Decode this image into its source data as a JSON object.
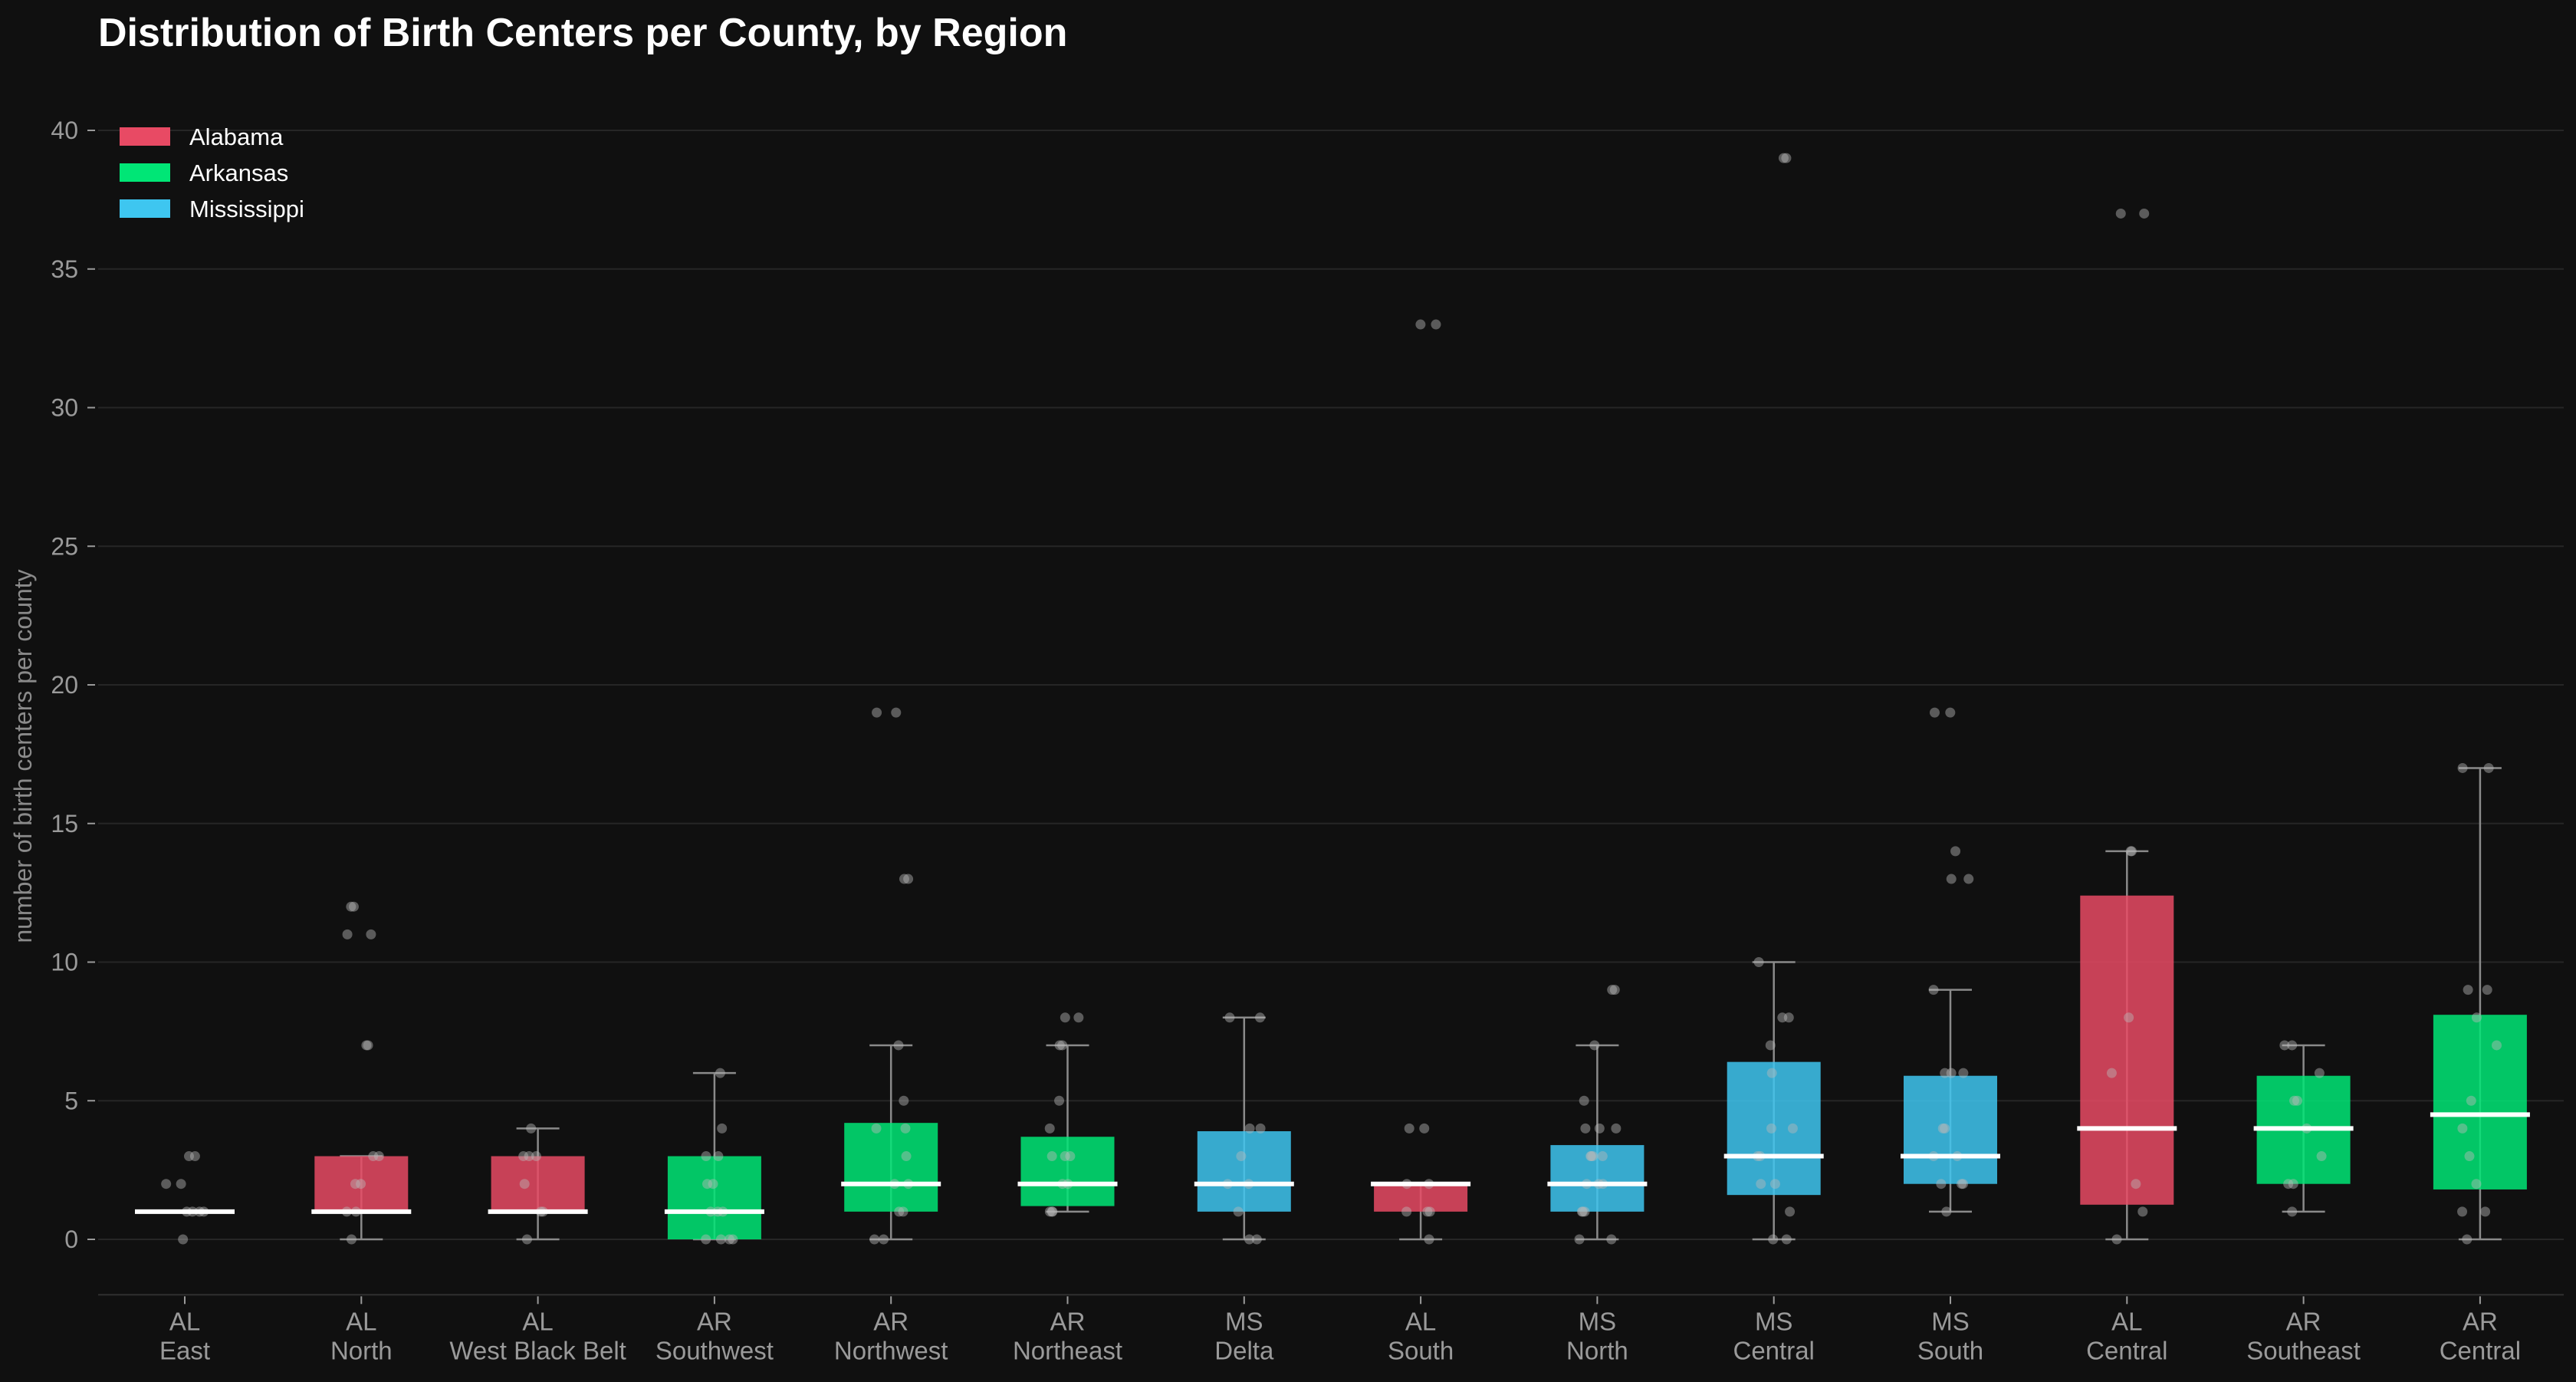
{
  "chart_data": {
    "type": "box",
    "title": "Distribution of Birth Centers per County, by Region",
    "ylabel": "number of birth centers per county",
    "xlabel": "",
    "ylim": [
      -2,
      42
    ],
    "yticks": [
      0,
      5,
      10,
      15,
      20,
      25,
      30,
      35,
      40
    ],
    "grid": "horizontal",
    "legend_position": "top-left",
    "legend": [
      {
        "name": "Alabama",
        "state": "AL",
        "color": "#e84a64"
      },
      {
        "name": "Arkansas",
        "state": "AR",
        "color": "#00e676"
      },
      {
        "name": "Mississippi",
        "state": "MS",
        "color": "#3ec6f0"
      }
    ],
    "colors": {
      "AL": "#e84a64",
      "AR": "#00e676",
      "MS": "#3ec6f0",
      "background": "#101010",
      "grid": "#262626",
      "median": "#ffffff"
    },
    "categories": [
      {
        "state": "AL",
        "region": "East",
        "whisker_low": 1,
        "q1": 1,
        "median": 1,
        "q3": 1,
        "whisker_high": 1,
        "points": [
          1,
          1,
          1,
          1,
          3,
          3,
          2,
          2,
          0
        ]
      },
      {
        "state": "AL",
        "region": "North",
        "whisker_low": 0,
        "q1": 1,
        "median": 1,
        "q3": 3,
        "whisker_high": 3,
        "points": [
          12,
          12,
          11,
          11,
          7,
          7,
          3,
          3,
          2,
          2,
          1,
          1,
          0
        ]
      },
      {
        "state": "AL",
        "region": "West Black Belt",
        "whisker_low": 0,
        "q1": 1,
        "median": 1,
        "q3": 3,
        "whisker_high": 4,
        "points": [
          4,
          3,
          3,
          3,
          2,
          1,
          1,
          0
        ]
      },
      {
        "state": "AR",
        "region": "Southwest",
        "whisker_low": 0,
        "q1": 0,
        "median": 1,
        "q3": 3,
        "whisker_high": 6,
        "points": [
          6,
          4,
          3,
          3,
          2,
          2,
          1,
          1,
          1,
          0,
          0,
          0,
          0
        ]
      },
      {
        "state": "AR",
        "region": "Northwest",
        "whisker_low": 0,
        "q1": 1,
        "median": 2,
        "q3": 4.2,
        "whisker_high": 7,
        "points": [
          19,
          19,
          13,
          13,
          7,
          5,
          4,
          4,
          3,
          2,
          2,
          1,
          1,
          0,
          0
        ]
      },
      {
        "state": "AR",
        "region": "Northeast",
        "whisker_low": 1,
        "q1": 1.2,
        "median": 2,
        "q3": 3.7,
        "whisker_high": 7,
        "points": [
          8,
          8,
          7,
          7,
          5,
          4,
          3,
          3,
          3,
          2,
          2,
          1,
          1,
          1
        ]
      },
      {
        "state": "MS",
        "region": "Delta",
        "whisker_low": 0,
        "q1": 1,
        "median": 2,
        "q3": 3.9,
        "whisker_high": 8,
        "points": [
          8,
          8,
          4,
          4,
          3,
          2,
          2,
          1,
          0,
          0
        ]
      },
      {
        "state": "AL",
        "region": "South",
        "whisker_low": 0,
        "q1": 1,
        "median": 2,
        "q3": 2,
        "whisker_high": 2,
        "points": [
          33,
          33,
          4,
          4,
          2,
          2,
          1,
          1,
          1,
          0
        ]
      },
      {
        "state": "MS",
        "region": "North",
        "whisker_low": 0,
        "q1": 1,
        "median": 2,
        "q3": 3.4,
        "whisker_high": 7,
        "points": [
          9,
          9,
          7,
          5,
          4,
          4,
          4,
          3,
          3,
          3,
          3,
          2,
          2,
          2,
          1,
          1,
          1,
          0,
          0
        ]
      },
      {
        "state": "MS",
        "region": "Central",
        "whisker_low": 0,
        "q1": 1.6,
        "median": 3,
        "q3": 6.4,
        "whisker_high": 10,
        "points": [
          39,
          39,
          10,
          8,
          8,
          7,
          6,
          4,
          4,
          3,
          3,
          2,
          2,
          1,
          0,
          0
        ]
      },
      {
        "state": "MS",
        "region": "South",
        "whisker_low": 1,
        "q1": 2,
        "median": 3,
        "q3": 5.9,
        "whisker_high": 9,
        "points": [
          19,
          19,
          14,
          13,
          13,
          9,
          6,
          6,
          6,
          4,
          4,
          3,
          3,
          2,
          2,
          2,
          1
        ]
      },
      {
        "state": "AL",
        "region": "Central",
        "whisker_low": 0,
        "q1": 1.25,
        "median": 4,
        "q3": 12.4,
        "whisker_high": 14,
        "points": [
          37,
          37,
          14,
          14,
          8,
          6,
          2,
          1,
          0
        ]
      },
      {
        "state": "AR",
        "region": "Southeast",
        "whisker_low": 1,
        "q1": 2,
        "median": 4,
        "q3": 5.9,
        "whisker_high": 7,
        "points": [
          7,
          7,
          6,
          5,
          5,
          4,
          3,
          2,
          2,
          1
        ]
      },
      {
        "state": "AR",
        "region": "Central",
        "whisker_low": 0,
        "q1": 1.8,
        "median": 4.5,
        "q3": 8.1,
        "whisker_high": 17,
        "points": [
          17,
          17,
          9,
          9,
          8,
          7,
          5,
          4,
          3,
          2,
          1,
          1,
          0
        ]
      }
    ]
  }
}
